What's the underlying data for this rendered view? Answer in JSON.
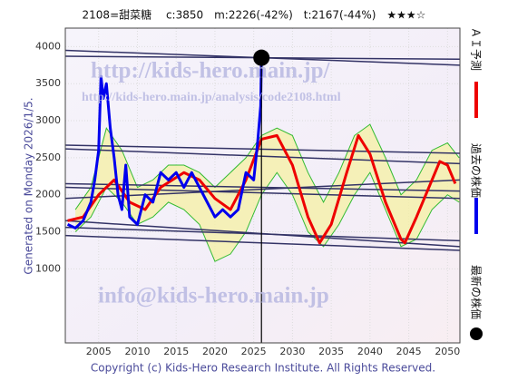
{
  "chart_data": {
    "type": "line",
    "title": "2108=甜菜糖　 c:3850　m:2226(-42%)　t:2167(-44%)　★★★☆",
    "side_note": "Generated on Monday 2026/1/5.",
    "footer": "Copyright (c) Kids-Hero Research Institute. All Rights Reserved.",
    "watermarks": [
      "http://kids-hero.main.jp/",
      "http://kids-hero.main.jp/analysis/code2108.html",
      "info@kids-hero.main.jp"
    ],
    "xlim": [
      2000.7,
      2051.6
    ],
    "ylim": [
      0,
      4250
    ],
    "xticks": [
      2005,
      2010,
      2015,
      2020,
      2025,
      2030,
      2035,
      2040,
      2045,
      2050
    ],
    "yticks": [
      1000,
      1500,
      2000,
      2500,
      3000,
      3500,
      4000
    ],
    "grid": true,
    "series": [
      {
        "name": "ＡＩ予測",
        "color": "#ee0000",
        "x": [
          2001,
          2003,
          2005,
          2007,
          2009,
          2011,
          2013,
          2016,
          2018,
          2020,
          2022,
          2024,
          2026,
          2028,
          2030,
          2032,
          2033.5,
          2035,
          2037,
          2038.5,
          2040,
          2042,
          2044,
          2044.5,
          2046,
          2048,
          2049,
          2050,
          2051
        ],
        "values": [
          1650,
          1700,
          2000,
          2200,
          1900,
          1800,
          2100,
          2300,
          2200,
          1950,
          1800,
          2200,
          2750,
          2800,
          2400,
          1700,
          1350,
          1600,
          2300,
          2800,
          2550,
          1900,
          1400,
          1350,
          1700,
          2200,
          2450,
          2400,
          2150
        ]
      },
      {
        "name": "過去の株価",
        "color": "#0000ee",
        "x": [
          2001,
          2002,
          2003,
          2004,
          2004.5,
          2005,
          2005.3,
          2005.6,
          2006,
          2006.5,
          2007,
          2007.5,
          2008,
          2008.5,
          2009,
          2010,
          2011,
          2012,
          2013,
          2014,
          2015,
          2016,
          2017,
          2018,
          2019,
          2020,
          2021,
          2022,
          2023,
          2024,
          2025,
          2025.5,
          2025.9,
          2026
        ],
        "values": [
          1600,
          1550,
          1650,
          1900,
          2200,
          2600,
          3600,
          3300,
          3500,
          2900,
          2500,
          2000,
          1800,
          2400,
          1700,
          1600,
          2000,
          1900,
          2300,
          2200,
          2300,
          2100,
          2300,
          2100,
          1900,
          1700,
          1800,
          1700,
          1800,
          2300,
          2200,
          2700,
          3200,
          3850
        ]
      },
      {
        "name": "最新の株価",
        "color": "#000000",
        "x": [
          2026
        ],
        "values": [
          3850
        ]
      }
    ],
    "bands": [
      {
        "color": "#33bb33",
        "fill": "#f5f0a8",
        "x": [
          2002,
          2004,
          2006,
          2008,
          2010,
          2012,
          2014,
          2016,
          2018,
          2020,
          2022,
          2024,
          2026,
          2028,
          2030,
          2032,
          2034,
          2036,
          2038,
          2040,
          2042,
          2044,
          2046,
          2048,
          2050,
          2051.5
        ],
        "upper": [
          1800,
          2100,
          2900,
          2600,
          2100,
          2200,
          2400,
          2400,
          2300,
          2100,
          2300,
          2500,
          2800,
          2900,
          2800,
          2300,
          1900,
          2300,
          2800,
          2950,
          2500,
          2000,
          2200,
          2600,
          2700,
          2500
        ],
        "lower": [
          1500,
          1700,
          2100,
          1900,
          1600,
          1700,
          1900,
          1800,
          1600,
          1100,
          1200,
          1500,
          2000,
          2300,
          2000,
          1500,
          1300,
          1600,
          2000,
          2300,
          1800,
          1300,
          1400,
          1800,
          2000,
          1900
        ]
      }
    ],
    "trend_lines": [
      {
        "color": "#333366",
        "x": [
          2000.7,
          2051.6
        ],
        "values": [
          3950,
          3750
        ]
      },
      {
        "color": "#333366",
        "x": [
          2000.7,
          2051.6
        ],
        "values": [
          3870,
          3830
        ]
      },
      {
        "color": "#333366",
        "x": [
          2000.7,
          2051.6
        ],
        "values": [
          2670,
          2560
        ]
      },
      {
        "color": "#333366",
        "x": [
          2000.7,
          2051.6
        ],
        "values": [
          2620,
          2420
        ]
      },
      {
        "color": "#333366",
        "x": [
          2000.7,
          2051.6
        ],
        "values": [
          2150,
          2050
        ]
      },
      {
        "color": "#333366",
        "x": [
          2000.7,
          2051.6
        ],
        "values": [
          2100,
          1950
        ]
      },
      {
        "color": "#333366",
        "x": [
          2000.7,
          2051.6
        ],
        "values": [
          1950,
          2200
        ]
      },
      {
        "color": "#333366",
        "x": [
          2000.7,
          2051.6
        ],
        "values": [
          1650,
          1300
        ]
      },
      {
        "color": "#333366",
        "x": [
          2000.7,
          2051.6
        ],
        "values": [
          1560,
          1380
        ]
      },
      {
        "color": "#333366",
        "x": [
          2000.7,
          2051.6
        ],
        "values": [
          1450,
          1250
        ]
      }
    ]
  }
}
